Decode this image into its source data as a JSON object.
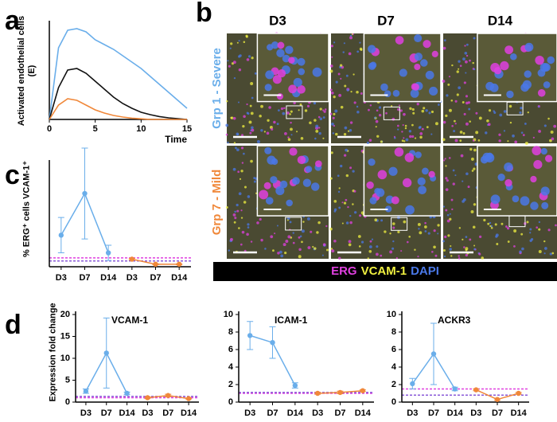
{
  "chart_data": [
    {
      "type": "line",
      "panel_label": "a",
      "y_label": "Activated endothelial cells (E)",
      "x_label": "Time",
      "x": [
        0,
        1,
        2,
        3,
        4,
        5,
        6,
        7,
        8,
        9,
        10,
        11,
        12,
        13,
        14,
        15
      ],
      "xlim": [
        0,
        15
      ],
      "xticks": [
        0,
        5,
        10,
        15
      ],
      "ylim": [
        0,
        0.6
      ],
      "series": [
        {
          "color": "#6aaeea",
          "values": [
            0,
            0.45,
            0.56,
            0.57,
            0.55,
            0.5,
            0.47,
            0.44,
            0.4,
            0.36,
            0.32,
            0.27,
            0.22,
            0.17,
            0.12,
            0.07
          ]
        },
        {
          "color": "#111111",
          "values": [
            0,
            0.2,
            0.31,
            0.32,
            0.29,
            0.24,
            0.19,
            0.14,
            0.1,
            0.07,
            0.045,
            0.03,
            0.018,
            0.01,
            0.005,
            0
          ]
        },
        {
          "color": "#f0883a",
          "values": [
            0,
            0.09,
            0.13,
            0.12,
            0.09,
            0.06,
            0.04,
            0.025,
            0.015,
            0.008,
            0.004,
            0,
            0,
            0,
            0,
            0
          ]
        }
      ]
    },
    {
      "type": "line",
      "panel_label": "c",
      "y_label": "% ERG⁺ cells VCAM-1⁺",
      "ylim": [
        0,
        41
      ],
      "categories": [
        "D3",
        "D7",
        "D14",
        "D3",
        "D7",
        "D14"
      ],
      "reference_lines": [
        {
          "value": 3.5,
          "color": "#e040e0"
        },
        {
          "value": 2.3,
          "color": "#8a5ad8"
        }
      ],
      "series": [
        {
          "color": "#6aaeea",
          "values": [
            12.5,
            29,
            5.5,
            null,
            null,
            null
          ],
          "errors": [
            7,
            18,
            3,
            null,
            null,
            null
          ]
        },
        {
          "color": "#f0883a",
          "values": [
            null,
            null,
            null,
            3,
            1,
            1
          ],
          "errors": [
            null,
            null,
            null,
            0.3,
            0.2,
            0.2
          ]
        }
      ]
    },
    {
      "type": "line",
      "panel_label": "d",
      "title": "VCAM-1",
      "y_label": "Expression fold change",
      "ylim": [
        0,
        20
      ],
      "yticks": [
        0,
        5,
        10,
        15,
        20
      ],
      "categories": [
        "D3",
        "D7",
        "D14",
        "D3",
        "D7",
        "D14"
      ],
      "reference_lines": [
        {
          "value": 1,
          "color": "#e040e0"
        },
        {
          "value": 1.3,
          "color": "#8a5ad8"
        }
      ],
      "series": [
        {
          "color": "#6aaeea",
          "values": [
            2.5,
            11.2,
            2,
            null,
            null,
            null
          ],
          "errors": [
            0.5,
            8,
            0.3,
            null,
            null,
            null
          ]
        },
        {
          "color": "#f0883a",
          "values": [
            null,
            null,
            null,
            1,
            1.5,
            0.8
          ],
          "errors": [
            null,
            null,
            null,
            0.2,
            0.3,
            0.1
          ]
        }
      ]
    },
    {
      "type": "line",
      "title": "ICAM-1",
      "ylim": [
        0,
        10
      ],
      "yticks": [
        0,
        2,
        4,
        6,
        8,
        10
      ],
      "categories": [
        "D3",
        "D7",
        "D14",
        "D3",
        "D7",
        "D14"
      ],
      "reference_lines": [
        {
          "value": 1,
          "color": "#e040e0"
        },
        {
          "value": 1.1,
          "color": "#8a5ad8"
        }
      ],
      "series": [
        {
          "color": "#6aaeea",
          "values": [
            7.6,
            6.8,
            1.9,
            null,
            null,
            null
          ],
          "errors": [
            1.6,
            1.8,
            0.3,
            null,
            null,
            null
          ]
        },
        {
          "color": "#f0883a",
          "values": [
            null,
            null,
            null,
            1,
            1.1,
            1.3
          ],
          "errors": [
            null,
            null,
            null,
            0.1,
            0.15,
            0.1
          ]
        }
      ]
    },
    {
      "type": "line",
      "title": "ACKR3",
      "ylim": [
        0,
        10
      ],
      "yticks": [
        0,
        2,
        4,
        6,
        8,
        10
      ],
      "categories": [
        "D3",
        "D7",
        "D14",
        "D3",
        "D7",
        "D14"
      ],
      "reference_lines": [
        {
          "value": 1.5,
          "color": "#e040e0"
        },
        {
          "value": 0.8,
          "color": "#8a5ad8"
        }
      ],
      "series": [
        {
          "color": "#6aaeea",
          "values": [
            2.1,
            5.5,
            1.5,
            null,
            null,
            null
          ],
          "errors": [
            0.6,
            3.5,
            0.2,
            null,
            null,
            null
          ]
        },
        {
          "color": "#f0883a",
          "values": [
            null,
            null,
            null,
            1.4,
            0.3,
            1.0
          ],
          "errors": [
            null,
            null,
            null,
            0.1,
            0.1,
            0.1
          ]
        }
      ]
    }
  ],
  "micrograph": {
    "panel_label": "b",
    "columns": [
      "D3",
      "D7",
      "D14"
    ],
    "rows": [
      "Grp 1 - Severe",
      "Grp 7 - Mild"
    ],
    "row_colors": [
      "#6aaeea",
      "#f0883a"
    ],
    "stains": [
      {
        "name": "ERG",
        "color": "#e040e0"
      },
      {
        "name": "VCAM-1",
        "color": "#f0f040"
      },
      {
        "name": "DAPI",
        "color": "#4a78e8"
      }
    ]
  }
}
